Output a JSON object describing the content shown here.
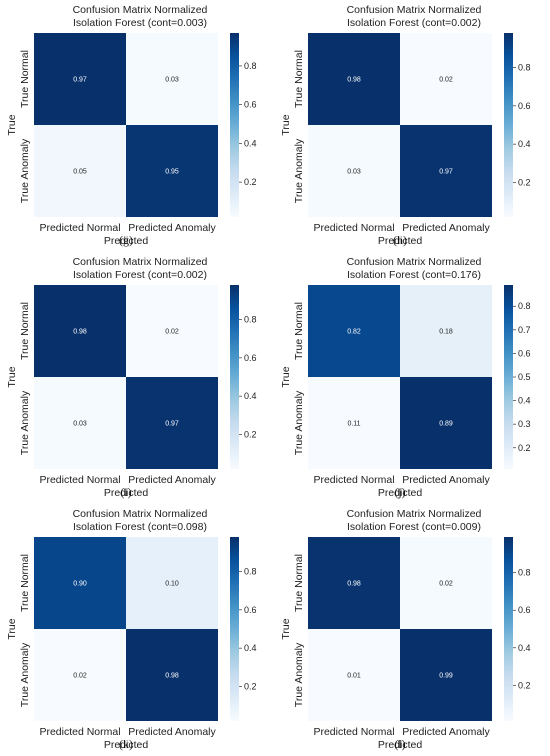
{
  "chart_data": [
    {
      "type": "heatmap",
      "title_line1": "Confusion Matrix Normalized",
      "title_line2": "Isolation Forest (cont=0.003)",
      "xlabel": "Predicted",
      "ylabel": "True",
      "x_categories": [
        "Predicted Normal",
        "Predicted Anomaly"
      ],
      "y_categories": [
        "True Normal",
        "True Anomaly"
      ],
      "values": [
        [
          0.97,
          0.03
        ],
        [
          0.05,
          0.95
        ]
      ],
      "cell_labels": [
        [
          "0.97",
          "0.03"
        ],
        [
          "0.05",
          "0.95"
        ]
      ],
      "colorbar_ticks": [
        "0.8",
        "0.6",
        "0.4",
        "0.2"
      ],
      "colorbar_range": [
        0.02,
        0.97
      ],
      "subfigure_label": "(g)"
    },
    {
      "type": "heatmap",
      "title_line1": "Confusion Matrix Normalized",
      "title_line2": "Isolation Forest (cont=0.002)",
      "xlabel": "Predicted",
      "ylabel": "True",
      "x_categories": [
        "Predicted Normal",
        "Predicted Anomaly"
      ],
      "y_categories": [
        "True Normal",
        "True Anomaly"
      ],
      "values": [
        [
          0.98,
          0.02
        ],
        [
          0.03,
          0.97
        ]
      ],
      "cell_labels": [
        [
          "0.98",
          "0.02"
        ],
        [
          "0.03",
          "0.97"
        ]
      ],
      "colorbar_ticks": [
        "0.8",
        "0.6",
        "0.4",
        "0.2"
      ],
      "colorbar_range": [
        0.02,
        0.98
      ],
      "subfigure_label": "(h)"
    },
    {
      "type": "heatmap",
      "title_line1": "Confusion Matrix Normalized",
      "title_line2": "Isolation Forest (cont=0.002)",
      "xlabel": "Predicted",
      "ylabel": "True",
      "x_categories": [
        "Predicted Normal",
        "Predicted Anomaly"
      ],
      "y_categories": [
        "True Normal",
        "True Anomaly"
      ],
      "values": [
        [
          0.98,
          0.02
        ],
        [
          0.03,
          0.97
        ]
      ],
      "cell_labels": [
        [
          "0.98",
          "0.02"
        ],
        [
          "0.03",
          "0.97"
        ]
      ],
      "colorbar_ticks": [
        "0.8",
        "0.6",
        "0.4",
        "0.2"
      ],
      "colorbar_range": [
        0.02,
        0.98
      ],
      "subfigure_label": "(i)"
    },
    {
      "type": "heatmap",
      "title_line1": "Confusion Matrix Normalized",
      "title_line2": "Isolation Forest (cont=0.176)",
      "xlabel": "Predicted",
      "ylabel": "True",
      "x_categories": [
        "Predicted Normal",
        "Predicted Anomaly"
      ],
      "y_categories": [
        "True Normal",
        "True Anomaly"
      ],
      "values": [
        [
          0.82,
          0.18
        ],
        [
          0.11,
          0.89
        ]
      ],
      "cell_labels": [
        [
          "0.82",
          "0.18"
        ],
        [
          "0.11",
          "0.89"
        ]
      ],
      "colorbar_ticks": [
        "0.8",
        "0.7",
        "0.6",
        "0.5",
        "0.4",
        "0.3",
        "0.2"
      ],
      "colorbar_range": [
        0.11,
        0.89
      ],
      "subfigure_label": "(j)"
    },
    {
      "type": "heatmap",
      "title_line1": "Confusion Matrix Normalized",
      "title_line2": "Isolation Forest (cont=0.098)",
      "xlabel": "Predicted",
      "ylabel": "True",
      "x_categories": [
        "Predicted Normal",
        "Predicted Anomaly"
      ],
      "y_categories": [
        "True Normal",
        "True Anomaly"
      ],
      "values": [
        [
          0.9,
          0.1
        ],
        [
          0.02,
          0.98
        ]
      ],
      "cell_labels": [
        [
          "0.90",
          "0.10"
        ],
        [
          "0.02",
          "0.98"
        ]
      ],
      "colorbar_ticks": [
        "0.8",
        "0.6",
        "0.4",
        "0.2"
      ],
      "colorbar_range": [
        0.02,
        0.98
      ],
      "subfigure_label": "(k)"
    },
    {
      "type": "heatmap",
      "title_line1": "Confusion Matrix Normalized",
      "title_line2": "Isolation Forest (cont=0.009)",
      "xlabel": "Predicted",
      "ylabel": "True",
      "x_categories": [
        "Predicted Normal",
        "Predicted Anomaly"
      ],
      "y_categories": [
        "True Normal",
        "True Anomaly"
      ],
      "values": [
        [
          0.98,
          0.02
        ],
        [
          0.01,
          0.99
        ]
      ],
      "cell_labels": [
        [
          "0.98",
          "0.02"
        ],
        [
          "0.01",
          "0.99"
        ]
      ],
      "colorbar_ticks": [
        "0.8",
        "0.6",
        "0.4",
        "0.2"
      ],
      "colorbar_range": [
        0.01,
        0.99
      ],
      "subfigure_label": "(l)"
    }
  ],
  "colormap_stops": [
    "#f7fbff",
    "#deebf7",
    "#c6dbef",
    "#9ecae1",
    "#6baed6",
    "#4292c6",
    "#2171b5",
    "#08519c",
    "#08306b"
  ]
}
